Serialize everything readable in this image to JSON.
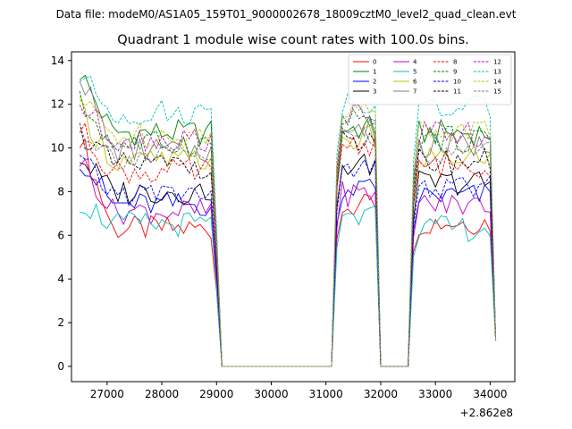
{
  "suptitle": "Data file: modeM0/AS1A05_159T01_9000002678_18009cztM0_level2_quad_clean.evt",
  "chart_data": {
    "type": "line",
    "title": "Quadrant 1 module wise count rates with 100.0s bins.",
    "xlabel": "",
    "ylabel": "",
    "x_offset_label": "+2.862e8",
    "xlim": [
      26350,
      34450
    ],
    "ylim": [
      -0.7,
      14.4
    ],
    "xticks": [
      27000,
      28000,
      29000,
      30000,
      31000,
      32000,
      33000,
      34000
    ],
    "xtick_labels": [
      "27000",
      "28000",
      "29000",
      "30000",
      "31000",
      "32000",
      "33000",
      "34000"
    ],
    "yticks": [
      0,
      2,
      4,
      6,
      8,
      10,
      12,
      14
    ],
    "ytick_labels": [
      "0",
      "2",
      "4",
      "6",
      "8",
      "10",
      "12",
      "14"
    ],
    "legend_location": "upper-right",
    "legend_columns": 4,
    "segments": [
      {
        "start": 26500,
        "step": 100,
        "count": 26
      },
      {
        "start": 31200,
        "step": 100,
        "count": 8
      },
      {
        "start": 32600,
        "step": 100,
        "count": 15
      }
    ],
    "gap_value": 0,
    "series": [
      {
        "name": "0",
        "color": "#ff0000",
        "dash": "solid",
        "base": 6.3,
        "seg_levels": [
          6.3,
          7.3,
          6.6
        ],
        "start_boost": 4.3
      },
      {
        "name": "1",
        "color": "#008000",
        "dash": "solid",
        "base": 10.7,
        "seg_levels": [
          10.7,
          10.9,
          10.7
        ],
        "start_boost": 2.8
      },
      {
        "name": "2",
        "color": "#0000ff",
        "dash": "solid",
        "base": 7.4,
        "seg_levels": [
          7.4,
          8.2,
          7.8
        ],
        "start_boost": 2.2
      },
      {
        "name": "3",
        "color": "#000000",
        "dash": "solid",
        "base": 8.0,
        "seg_levels": [
          8.0,
          9.2,
          8.4
        ],
        "start_boost": 1.6
      },
      {
        "name": "4",
        "color": "#bf00bf",
        "dash": "solid",
        "base": 7.1,
        "seg_levels": [
          7.1,
          7.9,
          7.4
        ],
        "start_boost": 2.4
      },
      {
        "name": "5",
        "color": "#00bfbf",
        "dash": "solid",
        "base": 6.5,
        "seg_levels": [
          6.5,
          6.8,
          6.3
        ],
        "start_boost": 1.1
      },
      {
        "name": "6",
        "color": "#bfbf00",
        "dash": "solid",
        "base": 9.4,
        "seg_levels": [
          9.4,
          10.4,
          9.6
        ],
        "start_boost": 2.4
      },
      {
        "name": "7",
        "color": "#7f7f7f",
        "dash": "solid",
        "base": 9.9,
        "seg_levels": [
          9.9,
          10.8,
          10.1
        ],
        "start_boost": 3.6
      },
      {
        "name": "8",
        "color": "#ff0000",
        "dash": "dashed",
        "base": 8.9,
        "seg_levels": [
          8.9,
          10.2,
          9.2
        ],
        "start_boost": 2.0
      },
      {
        "name": "9",
        "color": "#008000",
        "dash": "dashed",
        "base": 10.2,
        "seg_levels": [
          10.2,
          11.2,
          10.4
        ],
        "start_boost": 1.9
      },
      {
        "name": "10",
        "color": "#0000ff",
        "dash": "dashed",
        "base": 7.9,
        "seg_levels": [
          7.9,
          8.9,
          8.1
        ],
        "start_boost": 1.5
      },
      {
        "name": "11",
        "color": "#000000",
        "dash": "dashed",
        "base": 9.2,
        "seg_levels": [
          9.2,
          10.2,
          9.4
        ],
        "start_boost": 1.6
      },
      {
        "name": "12",
        "color": "#bf00bf",
        "dash": "dashed",
        "base": 10.4,
        "seg_levels": [
          10.4,
          11.4,
          10.6
        ],
        "start_boost": 1.6
      },
      {
        "name": "13",
        "color": "#00bfbf",
        "dash": "dashed",
        "base": 11.6,
        "seg_levels": [
          11.6,
          12.2,
          11.8
        ],
        "start_boost": 1.7
      },
      {
        "name": "14",
        "color": "#bfbf00",
        "dash": "dashed",
        "base": 10.6,
        "seg_levels": [
          10.6,
          11.6,
          10.8
        ],
        "start_boost": 1.6
      },
      {
        "name": "15",
        "color": "#7f7f7f",
        "dash": "dashed",
        "base": 9.6,
        "seg_levels": [
          9.6,
          10.6,
          9.8
        ],
        "start_boost": 1.4
      }
    ]
  }
}
